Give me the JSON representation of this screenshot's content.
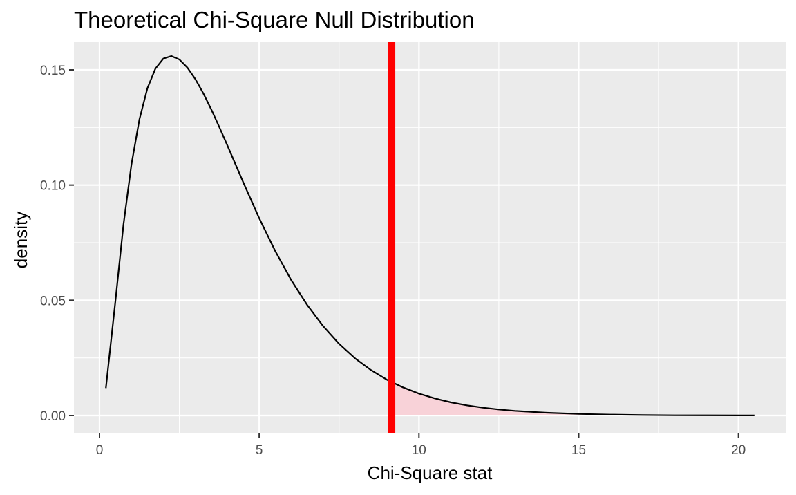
{
  "chart_data": {
    "type": "line",
    "title": "Theoretical Chi-Square Null Distribution",
    "xlabel": "Chi-Square stat",
    "ylabel": "density",
    "xlim": [
      -0.8,
      21.5
    ],
    "ylim": [
      -0.0075,
      0.162
    ],
    "x_ticks": [
      0,
      5,
      10,
      15,
      20
    ],
    "x_tick_labels": [
      "0",
      "5",
      "10",
      "15",
      "20"
    ],
    "y_ticks": [
      0.0,
      0.05,
      0.1,
      0.15
    ],
    "y_tick_labels": [
      "0.00",
      "0.05",
      "0.10",
      "0.15"
    ],
    "grid": true,
    "series": [
      {
        "kind": "density-curve",
        "x": [
          0.2,
          0.5,
          0.75,
          1,
          1.25,
          1.5,
          1.75,
          2,
          2.25,
          2.5,
          2.75,
          3,
          3.25,
          3.5,
          3.75,
          4,
          4.5,
          5,
          5.5,
          6,
          6.5,
          7,
          7.5,
          8,
          8.5,
          9,
          9.14,
          9.5,
          10,
          10.5,
          11,
          11.5,
          12,
          12.5,
          13,
          14,
          15,
          16,
          17,
          18,
          19,
          20,
          20.5
        ],
        "y": [
          0.0119,
          0.0498,
          0.0827,
          0.1089,
          0.1285,
          0.142,
          0.1505,
          0.1549,
          0.156,
          0.1545,
          0.151,
          0.146,
          0.1398,
          0.1328,
          0.1252,
          0.1173,
          0.1012,
          0.0856,
          0.0714,
          0.0588,
          0.048,
          0.0388,
          0.0311,
          0.0248,
          0.0197,
          0.0155,
          0.0146,
          0.0122,
          0.0095,
          0.0074,
          0.0057,
          0.0044,
          0.0034,
          0.0026,
          0.002,
          0.0012,
          0.0007,
          0.0004,
          0.0002,
          0.0001,
          7e-05,
          4e-05,
          3e-05
        ],
        "color": "#000000"
      }
    ],
    "observed_statistic": 9.14,
    "observed_line_color": "#ff0000",
    "shaded_region": {
      "from": 9.14,
      "to": 20.5,
      "color": "#f8d2d8"
    },
    "panel_background": "#ebebeb",
    "grid_color": "#ffffff"
  }
}
